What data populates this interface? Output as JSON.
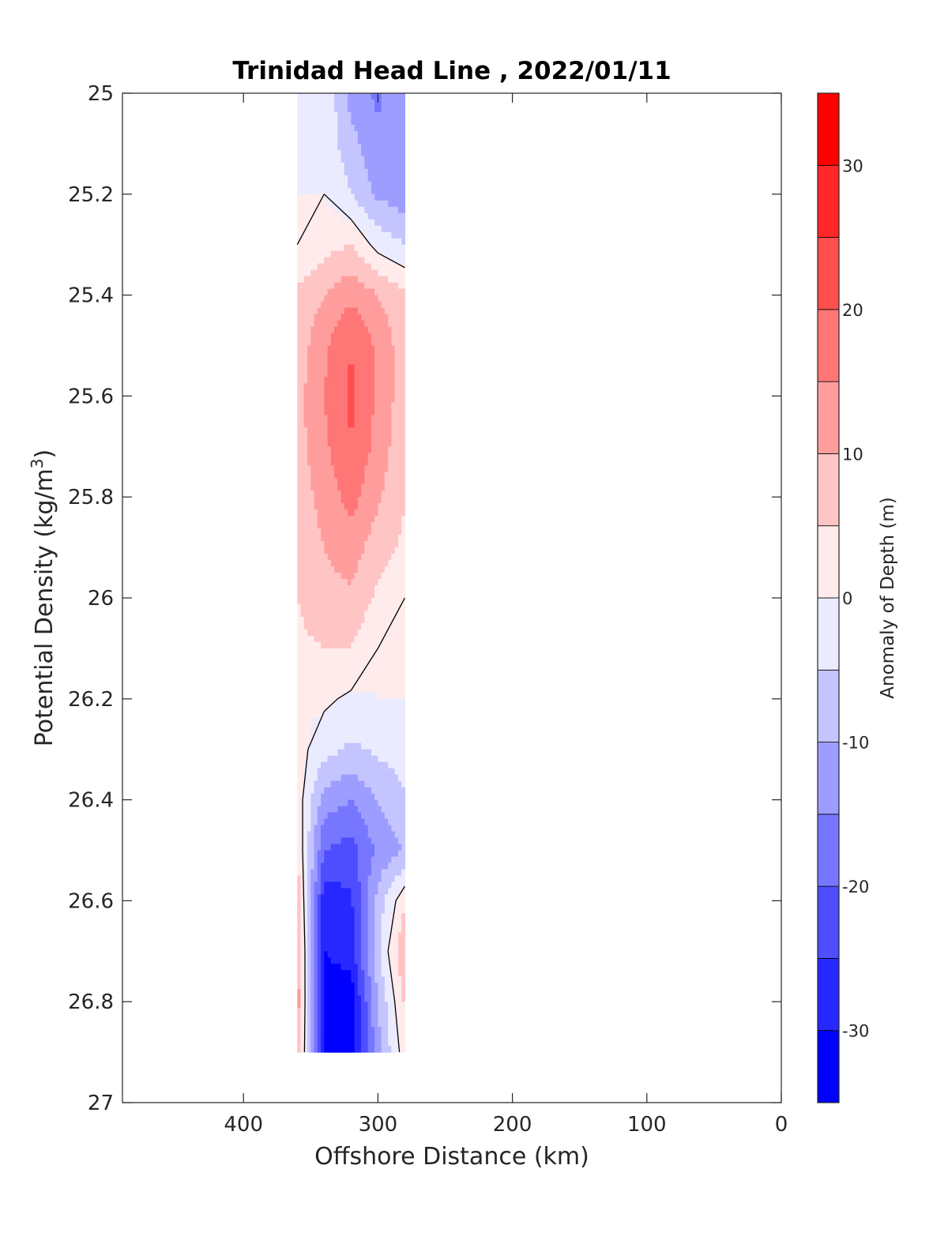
{
  "chart_data": {
    "type": "heatmap",
    "subtype": "filled-contour",
    "title": "Trinidad Head Line , 2022/01/11",
    "xlabel": "Offshore Distance (km)",
    "ylabel": "Potential Density (kg/m3)",
    "ylabel_parts": {
      "main": "Potential Density (kg/m",
      "sup": "3",
      "close": ")"
    },
    "xlim": [
      490,
      0
    ],
    "ylim": [
      25,
      27
    ],
    "x_reversed": true,
    "y_reversed": true,
    "xticks": [
      400,
      300,
      200,
      100,
      0
    ],
    "yticks": [
      25,
      25.2,
      25.4,
      25.6,
      25.8,
      26,
      26.2,
      26.4,
      26.6,
      26.8,
      27
    ],
    "colorbar": {
      "label": "Anomaly of Depth (m)",
      "range": [
        -35,
        35
      ],
      "step": 5,
      "ticks": [
        -30,
        -20,
        -10,
        0,
        10,
        20,
        30
      ],
      "colormap": "blue-white-red",
      "color_min": "#0000ff",
      "color_mid": "#ffffff",
      "color_max": "#ff0000"
    },
    "data_extent": {
      "x": [
        280,
        360
      ],
      "y": [
        25,
        26.9
      ]
    },
    "stations_km": [
      360,
      340,
      320,
      300,
      280
    ],
    "density_levels": [
      25.0,
      25.1,
      25.2,
      25.3,
      25.4,
      25.5,
      25.6,
      25.7,
      25.8,
      25.9,
      26.0,
      26.1,
      26.2,
      26.3,
      26.4,
      26.5,
      26.6,
      26.7,
      26.8,
      26.9
    ],
    "anomaly_grid_m": [
      [
        0,
        0,
        -12,
        -16,
        -10
      ],
      [
        0,
        -2,
        -8,
        -14,
        -13
      ],
      [
        0,
        0,
        -5,
        -11,
        -13
      ],
      [
        0,
        3,
        5,
        -2,
        -5
      ],
      [
        6,
        10,
        14,
        10,
        6
      ],
      [
        7,
        14,
        20,
        14,
        7
      ],
      [
        8,
        15,
        21,
        14,
        7
      ],
      [
        8,
        14,
        20,
        13,
        6
      ],
      [
        7,
        12,
        17,
        11,
        5
      ],
      [
        6,
        10,
        13,
        7,
        4
      ],
      [
        5,
        8,
        9,
        4,
        0
      ],
      [
        4,
        5,
        5,
        0,
        0
      ],
      [
        1,
        1,
        -1,
        0,
        0
      ],
      [
        2,
        -3,
        -6,
        -4,
        -2
      ],
      [
        3,
        -12,
        -15,
        -10,
        -6
      ],
      [
        5,
        -20,
        -22,
        -14,
        -10
      ],
      [
        9,
        -28,
        -26,
        -8,
        4
      ],
      [
        12,
        -30,
        -28,
        -6,
        10
      ],
      [
        13,
        -32,
        -33,
        -10,
        6
      ],
      [
        11,
        -30,
        -32,
        -12,
        3
      ]
    ],
    "zero_contour": "black line"
  }
}
